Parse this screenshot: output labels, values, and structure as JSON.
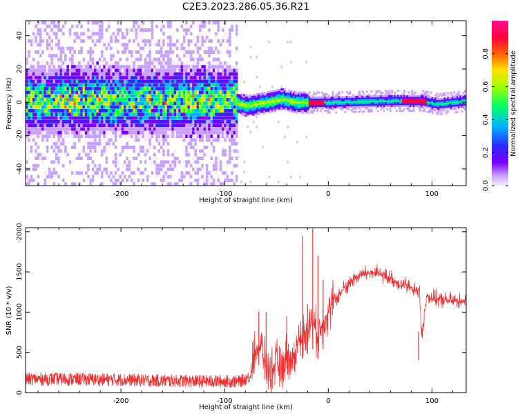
{
  "figure_title": "C2E3.2023.286.05.36.R21",
  "chart_data": [
    {
      "type": "heatmap",
      "title": "",
      "xlabel": "Height of straight line (km)",
      "ylabel": "Frequency (Hz)",
      "xlim": [
        -292,
        133
      ],
      "ylim": [
        -50,
        49
      ],
      "xticks": [
        -200,
        -100,
        0,
        100
      ],
      "xtick_labels": [
        "-200",
        "-100",
        "0",
        "100"
      ],
      "yticks": [
        -40,
        -20,
        0,
        20,
        40
      ],
      "ytick_labels": [
        "-40",
        "-20",
        "0",
        "20",
        "40"
      ],
      "colorbar": {
        "label": "Normalized spectral amplitude",
        "range": [
          0,
          1
        ],
        "ticks": [
          0,
          0.2,
          0.4,
          0.6,
          0.8
        ],
        "tick_labels": [
          "0.0",
          "0.2",
          "0.4",
          "0.6",
          "0.8"
        ],
        "colors": [
          "#f5ecff",
          "#c8a0ff",
          "#7a00ff",
          "#2a2aff",
          "#00b4ff",
          "#00ff66",
          "#a0ff00",
          "#ffe000",
          "#ff6000",
          "#ff0040",
          "#ff1090"
        ]
      },
      "data_extent_note": "",
      "band_center_hz": [
        {
          "x": -290,
          "f": 0
        },
        {
          "x": -200,
          "f": 0
        },
        {
          "x": -90,
          "f": 0
        },
        {
          "x": -80,
          "f": -2
        },
        {
          "x": -60,
          "f": 0
        },
        {
          "x": -45,
          "f": 2
        },
        {
          "x": -30,
          "f": 0
        },
        {
          "x": -20,
          "f": 0
        },
        {
          "x": 0,
          "f": 0
        },
        {
          "x": 60,
          "f": 1
        },
        {
          "x": 90,
          "f": 1
        },
        {
          "x": 105,
          "f": -1
        },
        {
          "x": 133,
          "f": 1
        }
      ]
    },
    {
      "type": "line",
      "title": "",
      "xlabel": "Height of straight line (km)",
      "ylabel": "SNR (10 * v/v)",
      "xlim": [
        -292,
        133
      ],
      "ylim": [
        0,
        2050
      ],
      "xticks": [
        -200,
        -100,
        0,
        100
      ],
      "xtick_labels": [
        "-200",
        "-100",
        "0",
        "100"
      ],
      "yticks": [
        0,
        500,
        1000,
        1500,
        2000
      ],
      "ytick_labels": [
        "0",
        "500",
        "1000",
        "1500",
        "2000"
      ],
      "series": [
        {
          "color": "#f03030",
          "x": [
            -292,
            -260,
            -230,
            -200,
            -170,
            -140,
            -110,
            -85,
            -75,
            -70,
            -65,
            -60,
            -55,
            -50,
            -45,
            -40,
            -35,
            -30,
            -25,
            -20,
            -15,
            -10,
            -5,
            0,
            5,
            10,
            15,
            20,
            25,
            30,
            40,
            50,
            60,
            70,
            80,
            88,
            90,
            95,
            100,
            110,
            120,
            133
          ],
          "y": [
            170,
            170,
            165,
            160,
            150,
            145,
            140,
            140,
            200,
            550,
            580,
            300,
            250,
            400,
            250,
            500,
            350,
            600,
            700,
            800,
            900,
            700,
            900,
            1000,
            1150,
            1200,
            1300,
            1350,
            1420,
            1460,
            1490,
            1470,
            1420,
            1350,
            1300,
            1250,
            700,
            1200,
            1180,
            1150,
            1140,
            1150
          ]
        }
      ],
      "spikes": [
        {
          "x": -67,
          "y": 1000
        },
        {
          "x": -60,
          "y": 1000
        },
        {
          "x": -40,
          "y": 950
        },
        {
          "x": -25,
          "y": 1950
        },
        {
          "x": -20,
          "y": 1100
        },
        {
          "x": -15,
          "y": 2040
        },
        {
          "x": -10,
          "y": 1700
        },
        {
          "x": -5,
          "y": 1400
        },
        {
          "x": 87,
          "y": 400
        }
      ]
    }
  ]
}
